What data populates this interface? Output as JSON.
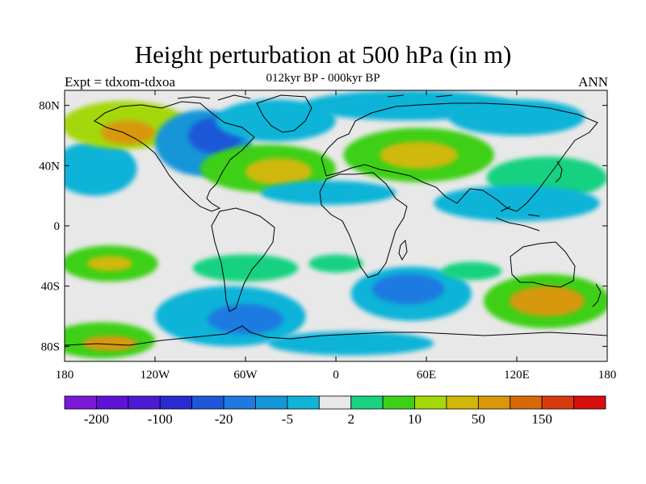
{
  "title": "Height perturbation at 500 hPa (in m)",
  "subtitle": "012kyr BP - 000kyr BP",
  "left_label": "Expt = tdxom-tdxoa",
  "right_label": "ANN",
  "map": {
    "projection": "cylindrical-equidistant",
    "lon_range": [
      -180,
      180
    ],
    "lat_range": [
      -90,
      90
    ],
    "lat_ticks": [
      {
        "lat": 80,
        "label": "80N"
      },
      {
        "lat": 40,
        "label": "40N"
      },
      {
        "lat": 0,
        "label": "0"
      },
      {
        "lat": -40,
        "label": "40S"
      },
      {
        "lat": -80,
        "label": "80S"
      }
    ],
    "lon_ticks": [
      {
        "lon": -180,
        "label": "180"
      },
      {
        "lon": -120,
        "label": "120W"
      },
      {
        "lon": -60,
        "label": "60W"
      },
      {
        "lon": 0,
        "label": "0"
      },
      {
        "lon": 60,
        "label": "60E"
      },
      {
        "lon": 120,
        "label": "120E"
      },
      {
        "lon": 180,
        "label": "180"
      }
    ],
    "background_color": "#e8e8e8",
    "anomaly_blobs": [
      {
        "lon": -155,
        "lat": 42,
        "rx": 18,
        "ry": 10,
        "level": -3
      },
      {
        "lon": -160,
        "lat": 38,
        "rx": 28,
        "ry": 18,
        "level": -1
      },
      {
        "lon": -140,
        "lat": 67,
        "rx": 42,
        "ry": 16,
        "level": 3
      },
      {
        "lon": -138,
        "lat": 62,
        "rx": 18,
        "ry": 8,
        "level": 5
      },
      {
        "lon": -88,
        "lat": 55,
        "rx": 32,
        "ry": 22,
        "level": -2
      },
      {
        "lon": -80,
        "lat": 60,
        "rx": 18,
        "ry": 12,
        "level": -4
      },
      {
        "lon": -40,
        "lat": 70,
        "rx": 40,
        "ry": 14,
        "level": -1
      },
      {
        "lon": -45,
        "lat": 38,
        "rx": 45,
        "ry": 16,
        "level": 2
      },
      {
        "lon": -38,
        "lat": 36,
        "rx": 22,
        "ry": 9,
        "level": 4
      },
      {
        "lon": 55,
        "lat": 47,
        "rx": 50,
        "ry": 18,
        "level": 2
      },
      {
        "lon": 55,
        "lat": 47,
        "rx": 26,
        "ry": 9,
        "level": 4
      },
      {
        "lon": 48,
        "lat": 80,
        "rx": 70,
        "ry": 10,
        "level": -1
      },
      {
        "lon": 120,
        "lat": 72,
        "rx": 45,
        "ry": 12,
        "level": -1
      },
      {
        "lon": 140,
        "lat": 32,
        "rx": 40,
        "ry": 14,
        "level": 1
      },
      {
        "lon": -5,
        "lat": 22,
        "rx": 45,
        "ry": 8,
        "level": -1
      },
      {
        "lon": 120,
        "lat": 15,
        "rx": 55,
        "ry": 12,
        "level": -1
      },
      {
        "lon": -150,
        "lat": -25,
        "rx": 32,
        "ry": 12,
        "level": 2
      },
      {
        "lon": -150,
        "lat": -25,
        "rx": 15,
        "ry": 5,
        "level": 4
      },
      {
        "lon": -60,
        "lat": -28,
        "rx": 35,
        "ry": 9,
        "level": 1
      },
      {
        "lon": 50,
        "lat": -45,
        "rx": 40,
        "ry": 18,
        "level": -1
      },
      {
        "lon": 48,
        "lat": -42,
        "rx": 24,
        "ry": 10,
        "level": -3
      },
      {
        "lon": 140,
        "lat": -50,
        "rx": 42,
        "ry": 18,
        "level": 2
      },
      {
        "lon": 140,
        "lat": -50,
        "rx": 25,
        "ry": 10,
        "level": 5
      },
      {
        "lon": -70,
        "lat": -60,
        "rx": 50,
        "ry": 20,
        "level": -1
      },
      {
        "lon": -60,
        "lat": -62,
        "rx": 25,
        "ry": 10,
        "level": -3
      },
      {
        "lon": -155,
        "lat": -76,
        "rx": 35,
        "ry": 12,
        "level": 2
      },
      {
        "lon": -150,
        "lat": -78,
        "rx": 18,
        "ry": 5,
        "level": 5
      },
      {
        "lon": 10,
        "lat": -78,
        "rx": 55,
        "ry": 8,
        "level": -1
      },
      {
        "lon": 0,
        "lat": -25,
        "rx": 18,
        "ry": 6,
        "level": 1
      },
      {
        "lon": 90,
        "lat": -30,
        "rx": 20,
        "ry": 6,
        "level": 1
      }
    ]
  },
  "colorbar": {
    "colors": [
      "#7a1ad8",
      "#5e12d6",
      "#4a1ad4",
      "#2a2ad0",
      "#1e58d8",
      "#1e7ae0",
      "#1596d8",
      "#10b4d8",
      "#e8e8e8",
      "#18d280",
      "#3cd018",
      "#a4d80a",
      "#d0b808",
      "#d89808",
      "#d86808",
      "#d83a10",
      "#d80e0e"
    ],
    "labels": [
      {
        "text": "-200",
        "boundary": 1
      },
      {
        "text": "-100",
        "boundary": 3
      },
      {
        "text": "-20",
        "boundary": 5
      },
      {
        "text": "-5",
        "boundary": 7
      },
      {
        "text": "2",
        "boundary": 9
      },
      {
        "text": "10",
        "boundary": 11
      },
      {
        "text": "50",
        "boundary": 13
      },
      {
        "text": "150",
        "boundary": 15
      }
    ]
  }
}
